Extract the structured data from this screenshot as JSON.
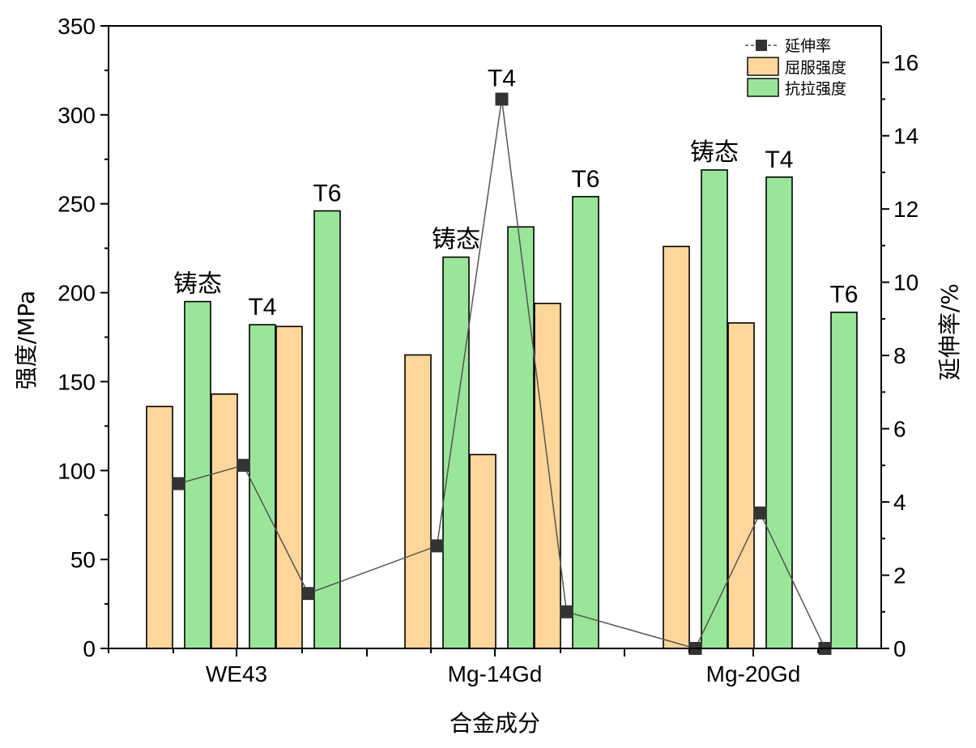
{
  "chart_data": {
    "type": "bar",
    "title": "",
    "xlabel": "合金成分",
    "ylabel": "强度/MPa",
    "ylabel_right": "延伸率/%",
    "ylim": [
      0,
      350
    ],
    "ylim_right": [
      0,
      17
    ],
    "yticks": [
      0,
      50,
      100,
      150,
      200,
      250,
      300,
      350
    ],
    "yticks_right": [
      0,
      2,
      4,
      6,
      8,
      10,
      12,
      14,
      16
    ],
    "grid": false,
    "legend_position": "top-right",
    "legend": {
      "elongation": "延伸率",
      "yield": "屈服强度",
      "tensile": "抗拉强度"
    },
    "colors": {
      "yield": "#ffd699",
      "tensile": "#99e699",
      "line": "#555555",
      "marker": "#333333"
    },
    "categories": [
      "WE43",
      "Mg-14Gd",
      "Mg-20Gd"
    ],
    "states": [
      "铸态",
      "T4",
      "T6"
    ],
    "groups": [
      {
        "category": "WE43",
        "bars": [
          {
            "state": "铸态",
            "yield": 136,
            "tensile": 195,
            "elongation": 4.5
          },
          {
            "state": "T4",
            "yield": 143,
            "tensile": 182,
            "elongation": 5.0
          },
          {
            "state": "T6",
            "yield": 181,
            "tensile": 246,
            "elongation": 1.5
          }
        ]
      },
      {
        "category": "Mg-14Gd",
        "bars": [
          {
            "state": "铸态",
            "yield": 165,
            "tensile": 220,
            "elongation": 2.8
          },
          {
            "state": "T4",
            "yield": 109,
            "tensile": 237,
            "elongation": 15.0
          },
          {
            "state": "T6",
            "yield": 194,
            "tensile": 254,
            "elongation": 1.0
          }
        ]
      },
      {
        "category": "Mg-20Gd",
        "bars": [
          {
            "state": "铸态",
            "yield": 226,
            "tensile": 269,
            "elongation": 0.0
          },
          {
            "state": "T4",
            "yield": 183,
            "tensile": 265,
            "elongation": 3.7
          },
          {
            "state": "T6",
            "yield": null,
            "tensile": 189,
            "elongation": 0.0
          }
        ]
      }
    ]
  }
}
